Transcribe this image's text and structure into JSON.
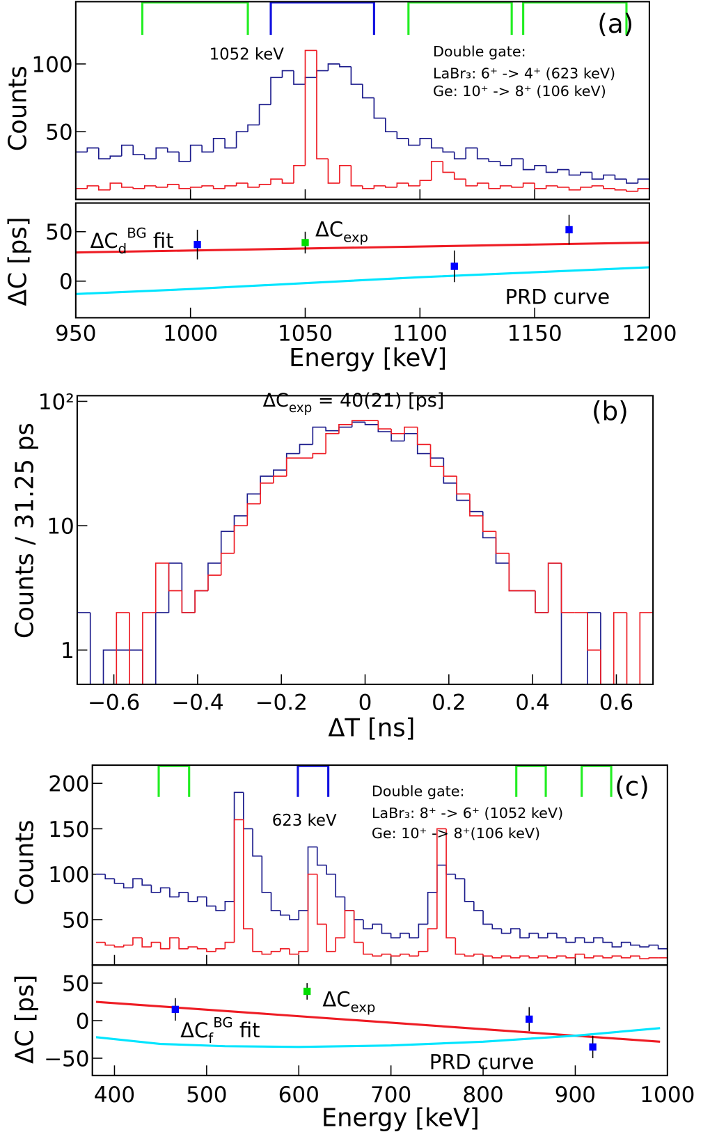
{
  "chart_data": [
    {
      "type": "histogram",
      "panel": "(a)",
      "ylabel": "Counts",
      "xlim": [
        950,
        1200
      ],
      "ylim": [
        0,
        146
      ],
      "yticks": [
        50,
        100
      ],
      "bins": [
        950,
        955,
        960,
        965,
        970,
        975,
        980,
        985,
        990,
        995,
        1000,
        1005,
        1010,
        1015,
        1020,
        1025,
        1030,
        1035,
        1040,
        1045,
        1050,
        1055,
        1060,
        1065,
        1070,
        1075,
        1080,
        1085,
        1090,
        1095,
        1100,
        1105,
        1110,
        1115,
        1120,
        1125,
        1130,
        1135,
        1140,
        1145,
        1150,
        1155,
        1160,
        1165,
        1170,
        1175,
        1180,
        1185,
        1190,
        1195,
        1200
      ],
      "series": [
        {
          "color": "#1c1c8c",
          "values": [
            35,
            38,
            30,
            32,
            40,
            33,
            30,
            38,
            35,
            28,
            40,
            35,
            45,
            38,
            50,
            55,
            70,
            90,
            95,
            85,
            90,
            95,
            100,
            98,
            85,
            75,
            60,
            50,
            45,
            40,
            45,
            38,
            35,
            30,
            38,
            30,
            28,
            25,
            30,
            22,
            25,
            20,
            22,
            18,
            20,
            15,
            18,
            15,
            12,
            15
          ]
        },
        {
          "color": "#ee1c24",
          "values": [
            8,
            10,
            7,
            12,
            9,
            8,
            10,
            9,
            11,
            8,
            9,
            10,
            8,
            10,
            12,
            9,
            11,
            15,
            12,
            25,
            110,
            30,
            12,
            25,
            10,
            8,
            10,
            9,
            12,
            10,
            14,
            28,
            20,
            15,
            10,
            12,
            8,
            10,
            9,
            12,
            8,
            10,
            9,
            7,
            9,
            10,
            8,
            7,
            6,
            8
          ]
        }
      ],
      "gates": [
        {
          "range": [
            979,
            1025
          ],
          "color": "#22ee22"
        },
        {
          "range": [
            1035,
            1080
          ],
          "color": "#1010e0"
        },
        {
          "range": [
            1095,
            1140
          ],
          "color": "#22ee22"
        },
        {
          "range": [
            1145,
            1190
          ],
          "color": "#22ee22"
        }
      ],
      "annotations": [
        "1052 keV",
        "Double gate:",
        "LaBr₃: 6⁺ -> 4⁺ (623 keV)",
        "Ge:      10⁺ -> 8⁺ (106 keV)"
      ]
    },
    {
      "type": "errorbar",
      "ylabel": "ΔC [ps]",
      "xlabel": "Energy [keV]",
      "xlim": [
        950,
        1200
      ],
      "xticks": [
        950,
        1000,
        1050,
        1100,
        1150,
        1200
      ],
      "ylim": [
        -37,
        79
      ],
      "yticks": [
        0,
        50
      ],
      "points": {
        "x": [
          1003,
          1050,
          1115,
          1165
        ],
        "values": [
          37,
          39,
          15,
          52
        ],
        "errors": [
          15,
          11,
          16,
          15
        ],
        "colors": [
          "#0000ff",
          "#00dd00",
          "#0000ff",
          "#0000ff"
        ],
        "label": {
          "main": "ΔC",
          "sub": "exp"
        },
        "label_color": "#00dd00"
      },
      "series": [
        {
          "name": {
            "main": "ΔC",
            "sub": "d",
            "sup": "BG",
            "rest": " fit"
          },
          "color": "#ee1c24",
          "x": [
            950,
            1200
          ],
          "values": [
            29,
            39
          ]
        },
        {
          "name": {
            "main": "PRD curve"
          },
          "color": "#00e5ff",
          "x": [
            950,
            1000,
            1050,
            1100,
            1150,
            1200
          ],
          "values": [
            -13,
            -8,
            -2,
            4,
            9,
            14
          ]
        }
      ]
    },
    {
      "type": "histogram",
      "panel": "(b)",
      "log": true,
      "title": {
        "main": "ΔC",
        "sub": "exp",
        "rest": " = 40(21) [ps]"
      },
      "ylabel": "Counts / 31.25 ps",
      "xlabel": "ΔT [ns]",
      "xlim": [
        -0.6875,
        0.6875
      ],
      "xticks": [
        {
          "value": -0.6,
          "label": "−0.6"
        },
        {
          "value": -0.4,
          "label": "−0.4"
        },
        {
          "value": -0.2,
          "label": "−0.2"
        },
        0,
        0.2,
        0.4,
        0.6
      ],
      "ylim": [
        0.53,
        111
      ],
      "yticks": [
        1,
        10,
        {
          "value": 100,
          "label": "10²"
        }
      ],
      "bins": [
        -0.6875,
        -0.65625,
        -0.625,
        -0.59375,
        -0.5625,
        -0.53125,
        -0.5,
        -0.46875,
        -0.4375,
        -0.40625,
        -0.375,
        -0.34375,
        -0.3125,
        -0.28125,
        -0.25,
        -0.21875,
        -0.1875,
        -0.15625,
        -0.125,
        -0.09375,
        -0.0625,
        -0.03125,
        0,
        0.03125,
        0.0625,
        0.09375,
        0.125,
        0.15625,
        0.1875,
        0.21875,
        0.25,
        0.28125,
        0.3125,
        0.34375,
        0.375,
        0.40625,
        0.4375,
        0.46875,
        0.5,
        0.53125,
        0.5625,
        0.59375,
        0.625,
        0.65625,
        0.6875
      ],
      "series": [
        {
          "color": "#1c1c8c",
          "values": [
            2,
            0,
            1,
            1,
            1,
            0,
            2,
            5,
            2,
            3,
            5,
            9,
            12,
            18,
            25,
            28,
            38,
            45,
            62,
            58,
            62,
            68,
            65,
            57,
            48,
            55,
            38,
            35,
            22,
            16,
            13,
            8,
            5,
            3,
            3,
            2,
            5,
            0,
            0,
            2,
            0,
            0,
            0,
            0
          ]
        },
        {
          "color": "#ee1c24",
          "values": [
            0,
            0,
            0,
            2,
            0,
            2,
            5,
            3,
            2,
            3,
            4,
            6,
            10,
            15,
            22,
            25,
            35,
            35,
            38,
            55,
            65,
            70,
            70,
            60,
            55,
            62,
            45,
            30,
            25,
            18,
            12,
            9,
            6,
            3,
            3,
            2,
            5,
            2,
            2,
            1,
            0,
            2,
            0,
            2
          ]
        }
      ]
    },
    {
      "type": "histogram",
      "panel": "(c)",
      "ylabel": "Counts",
      "xlim": [
        376,
        1000
      ],
      "ylim": [
        0,
        220
      ],
      "yticks": [
        50,
        100,
        150,
        200
      ],
      "bins": [
        380,
        390,
        400,
        410,
        420,
        430,
        440,
        450,
        460,
        470,
        480,
        490,
        500,
        510,
        520,
        530,
        540,
        550,
        560,
        570,
        580,
        590,
        600,
        610,
        620,
        630,
        640,
        650,
        660,
        670,
        680,
        690,
        700,
        710,
        720,
        730,
        740,
        750,
        760,
        770,
        780,
        790,
        800,
        810,
        820,
        830,
        840,
        850,
        860,
        870,
        880,
        890,
        900,
        910,
        920,
        930,
        940,
        950,
        960,
        970,
        980,
        990,
        1000
      ],
      "series": [
        {
          "color": "#1c1c8c",
          "values": [
            100,
            95,
            90,
            85,
            95,
            88,
            80,
            85,
            75,
            80,
            70,
            75,
            65,
            60,
            70,
            190,
            150,
            120,
            80,
            60,
            55,
            50,
            60,
            130,
            110,
            100,
            75,
            60,
            50,
            40,
            45,
            35,
            30,
            35,
            30,
            45,
            80,
            110,
            100,
            95,
            70,
            60,
            45,
            40,
            35,
            40,
            30,
            35,
            30,
            35,
            30,
            25,
            30,
            25,
            30,
            25,
            20,
            25,
            22,
            20,
            22,
            18
          ]
        },
        {
          "color": "#ee1c24",
          "values": [
            25,
            22,
            20,
            22,
            30,
            20,
            25,
            18,
            30,
            18,
            20,
            18,
            15,
            18,
            25,
            160,
            40,
            15,
            12,
            15,
            18,
            12,
            15,
            100,
            45,
            15,
            30,
            60,
            25,
            12,
            10,
            12,
            10,
            12,
            10,
            15,
            40,
            150,
            30,
            12,
            10,
            12,
            10,
            8,
            10,
            8,
            10,
            8,
            10,
            8,
            10,
            8,
            12,
            8,
            10,
            8,
            10,
            8,
            10,
            7,
            8,
            8
          ]
        }
      ],
      "gates": [
        {
          "range": [
            448,
            481
          ],
          "color": "#22ee22"
        },
        {
          "range": [
            599,
            632
          ],
          "color": "#1010e0"
        },
        {
          "range": [
            836,
            868
          ],
          "color": "#22ee22"
        },
        {
          "range": [
            907,
            939
          ],
          "color": "#22ee22"
        }
      ],
      "annotations": [
        "623 keV",
        "Double gate:",
        "LaBr₃: 8⁺ -> 6⁺ (1052 keV)",
        "Ge:      10⁺ -> 8⁺(106 keV)"
      ]
    },
    {
      "type": "errorbar",
      "ylabel": "ΔC [ps]",
      "xlabel": "Energy [keV]",
      "xlim": [
        376,
        1000
      ],
      "xticks": [
        400,
        500,
        600,
        700,
        800,
        900,
        1000
      ],
      "ylim": [
        -73,
        74
      ],
      "yticks": [
        {
          "value": -50,
          "label": "−50"
        },
        0,
        50
      ],
      "points": {
        "x": [
          466,
          609,
          850,
          919
        ],
        "values": [
          15,
          39,
          2,
          -35
        ],
        "errors": [
          15,
          11,
          16,
          15
        ],
        "colors": [
          "#0000ff",
          "#00dd00",
          "#0000ff",
          "#0000ff"
        ],
        "label": {
          "main": "ΔC",
          "sub": "exp"
        },
        "label_color": "#00dd00"
      },
      "series": [
        {
          "name": {
            "main": "ΔC",
            "sub": "f",
            "sup": "BG",
            "rest": " fit"
          },
          "color": "#ee1c24",
          "x": [
            380,
            992
          ],
          "values": [
            25,
            -28
          ]
        },
        {
          "name": {
            "main": "PRD curve"
          },
          "color": "#00e5ff",
          "x": [
            380,
            450,
            520,
            600,
            700,
            800,
            900,
            992
          ],
          "values": [
            -22,
            -31,
            -34,
            -35,
            -33,
            -28,
            -20,
            -10
          ]
        }
      ]
    }
  ]
}
